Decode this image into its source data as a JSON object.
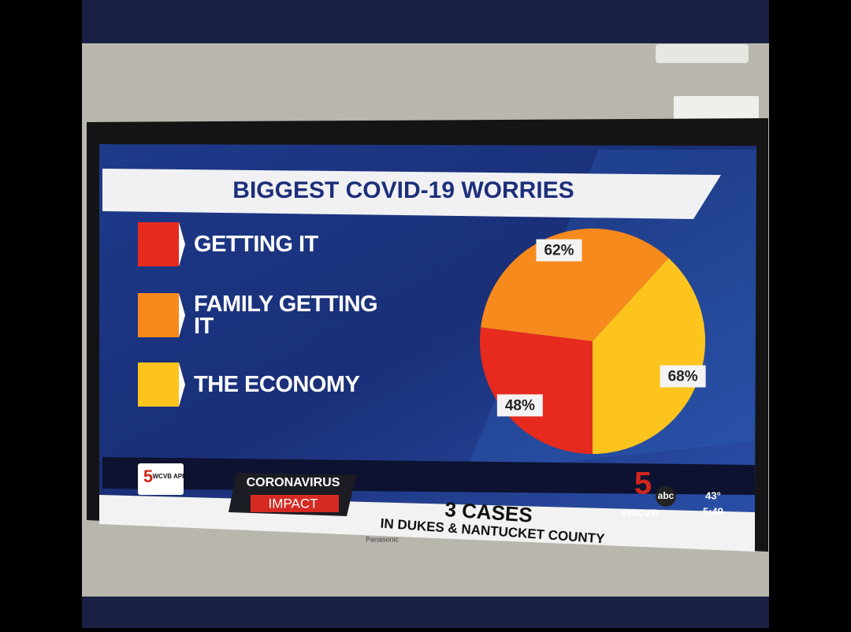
{
  "chart_data": {
    "type": "pie",
    "title": "BIGGEST COVID-19 WORRIES",
    "categories": [
      "GETTING IT",
      "FAMILY GETTING IT",
      "THE ECONOMY"
    ],
    "values": [
      48,
      62,
      68
    ],
    "value_labels": [
      "48%",
      "62%",
      "68%"
    ],
    "colors": [
      "#e62a1e",
      "#f78a1c",
      "#fcc41c"
    ]
  },
  "ticker": {
    "app": "WCVB APP",
    "topic": "CORONAVIRUS",
    "subtopic": "IMPACT",
    "headline": "3 CASES",
    "detail": "IN DUKES & NANTUCKET COUNTY",
    "hashtag": "#WCVB",
    "network": "abc",
    "channel": "5",
    "temperature": "43°",
    "time": "5:49"
  },
  "tv_brand": "Panasonic"
}
